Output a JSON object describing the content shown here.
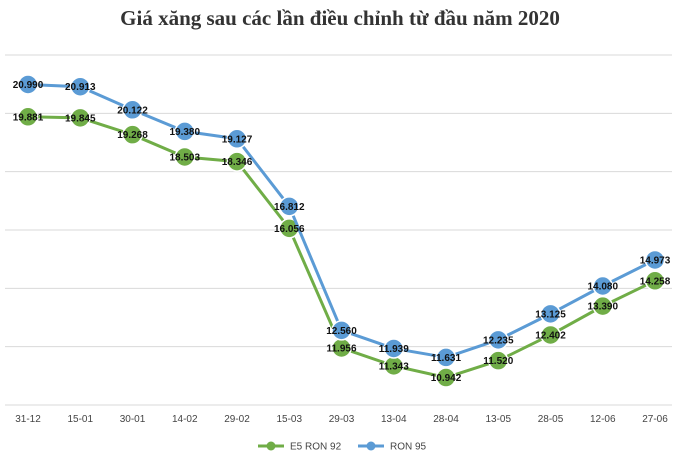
{
  "chart_data": {
    "type": "line",
    "title": "Giá xăng sau các lần điều chỉnh từ đầu năm 2020",
    "xlabel": "",
    "ylabel": "",
    "x": [
      "31-12",
      "15-01",
      "30-01",
      "14-02",
      "29-02",
      "15-03",
      "29-03",
      "13-04",
      "28-04",
      "13-05",
      "28-05",
      "12-06",
      "27-06"
    ],
    "ylim": [
      10000,
      22000
    ],
    "grid": true,
    "legend_position": "bottom",
    "series": [
      {
        "name": "E5 RON 92",
        "color": "#70ad47",
        "values": [
          19881,
          19845,
          19268,
          18503,
          18346,
          16056,
          11956,
          11343,
          10942,
          11520,
          12402,
          13390,
          14258
        ],
        "labels": [
          "19.881",
          "19.845",
          "19.268",
          "18.503",
          "18.346",
          "16.056",
          "11.956",
          "11.343",
          "10.942",
          "11.520",
          "12.402",
          "13.390",
          "14.258"
        ]
      },
      {
        "name": "RON 95",
        "color": "#5b9bd5",
        "values": [
          20990,
          20913,
          20122,
          19380,
          19127,
          16812,
          12560,
          11939,
          11631,
          12235,
          13125,
          14080,
          14973
        ],
        "labels": [
          "20.990",
          "20.913",
          "20.122",
          "19.380",
          "19.127",
          "16.812",
          "12.560",
          "11.939",
          "11.631",
          "12.235",
          "13.125",
          "14.080",
          "14.973"
        ]
      }
    ]
  }
}
